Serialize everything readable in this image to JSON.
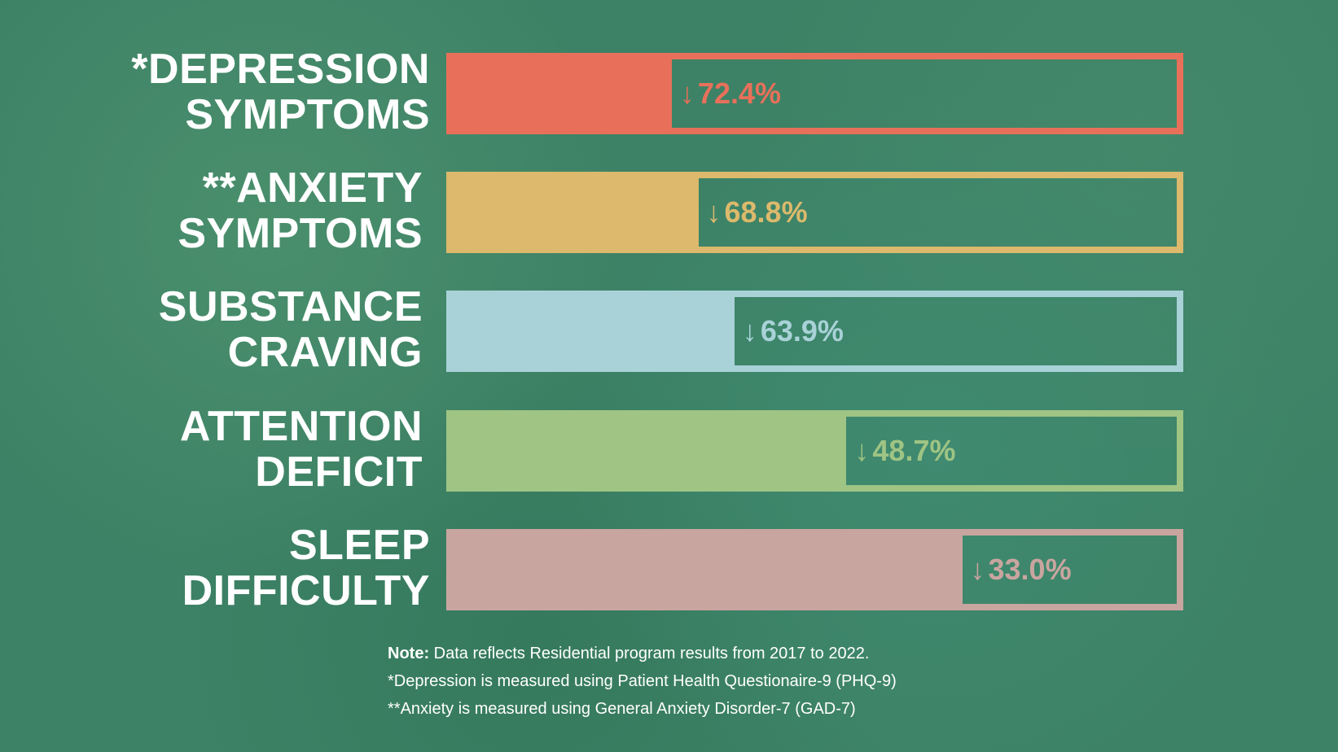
{
  "chart_data": {
    "type": "bar",
    "title": "",
    "categories": [
      {
        "line1": "*DEPRESSION",
        "line2": "SYMPTOMS"
      },
      {
        "line1": "**ANXIETY",
        "line2": "SYMPTOMS"
      },
      {
        "line1": "SUBSTANCE",
        "line2": "CRAVING"
      },
      {
        "line1": "ATTENTION",
        "line2": "DEFICIT"
      },
      {
        "line1": "SLEEP",
        "line2": "DIFFICULTY"
      }
    ],
    "values": [
      72.4,
      68.8,
      63.9,
      48.7,
      33.0
    ],
    "value_labels": [
      "72.4%",
      "68.8%",
      "63.9%",
      "48.7%",
      "33.0%"
    ],
    "direction": "decrease",
    "arrow_icon": "↓",
    "colors": [
      "#e8705a",
      "#dcb96c",
      "#a9d2d8",
      "#9fc484",
      "#c9a5a0"
    ],
    "xlim": [
      0,
      100
    ]
  },
  "notes": {
    "note_bold": "Note:",
    "note_text": " Data reflects Residential program results from 2017 to 2022.",
    "footnote1": "*Depression is measured using Patient Health Questionaire-9 (PHQ-9)",
    "footnote2": "**Anxiety is measured using General Anxiety Disorder-7 (GAD-7)"
  }
}
